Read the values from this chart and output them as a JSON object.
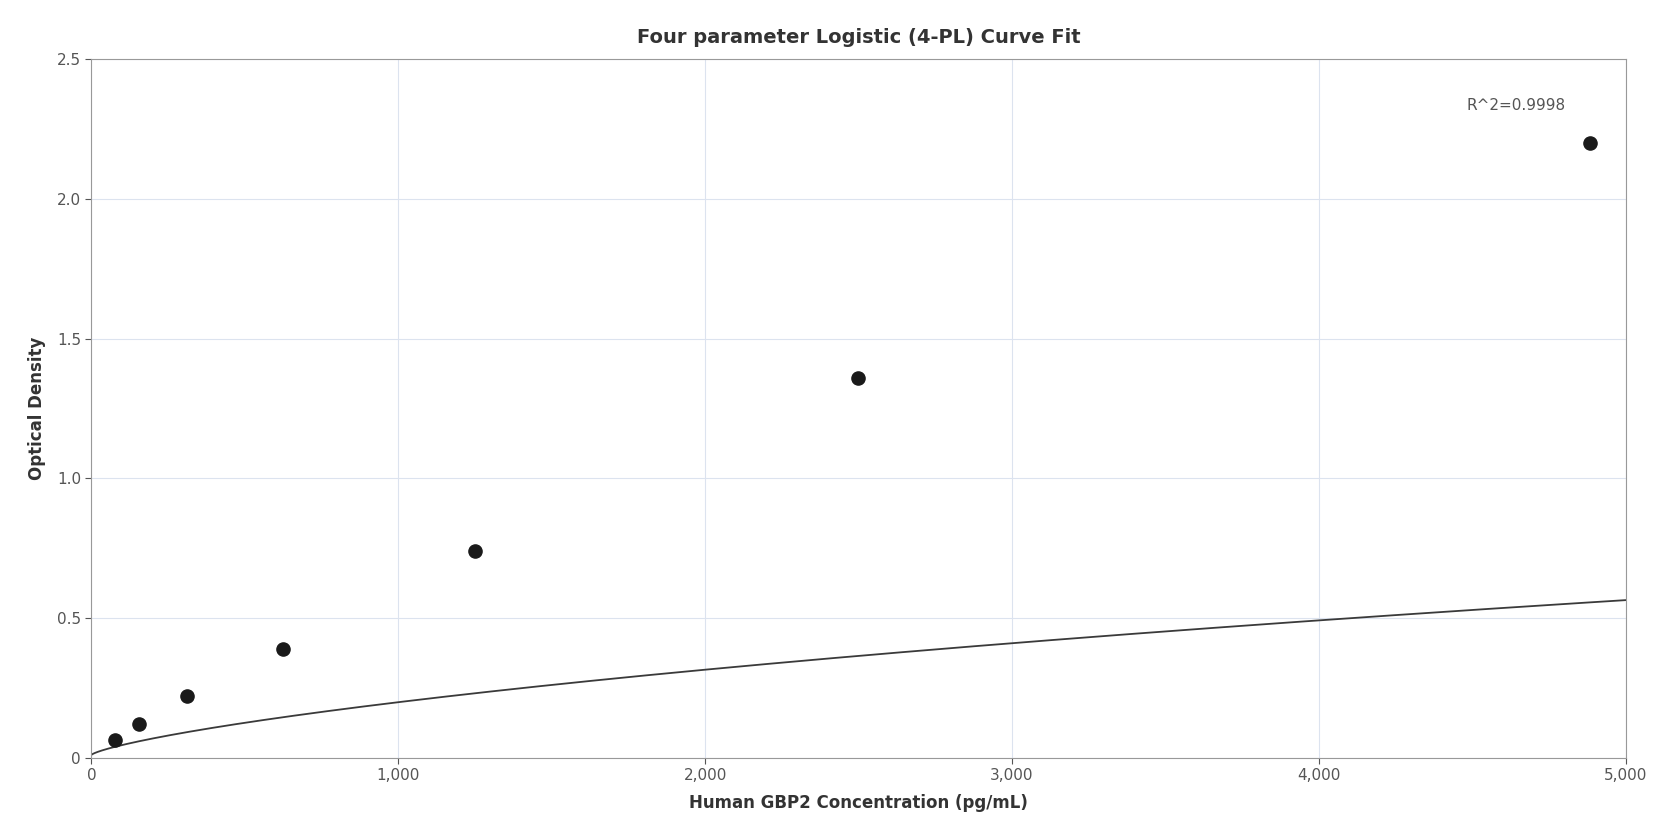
{
  "title": "Four parameter Logistic (4-PL) Curve Fit",
  "xlabel": "Human GBP2 Concentration (pg/mL)",
  "ylabel": "Optical Density",
  "data_x": [
    78.125,
    156.25,
    312.5,
    625,
    1250,
    2500,
    4882.8125
  ],
  "data_y": [
    0.065,
    0.12,
    0.22,
    0.39,
    0.74,
    1.36,
    2.2
  ],
  "r_squared": "R^2=0.9998",
  "xlim": [
    0,
    5000
  ],
  "ylim": [
    0,
    2.5
  ],
  "xticks": [
    0,
    1000,
    2000,
    3000,
    4000,
    5000
  ],
  "yticks": [
    0,
    0.5,
    1.0,
    1.5,
    2.0,
    2.5
  ],
  "bg_color": "#ffffff",
  "grid_color": "#dce3ef",
  "line_color": "#3a3a3a",
  "dot_color": "#1a1a1a",
  "dot_size": 90,
  "annotation_fontsize": 11,
  "title_fontsize": 14,
  "label_fontsize": 12,
  "tick_fontsize": 11
}
